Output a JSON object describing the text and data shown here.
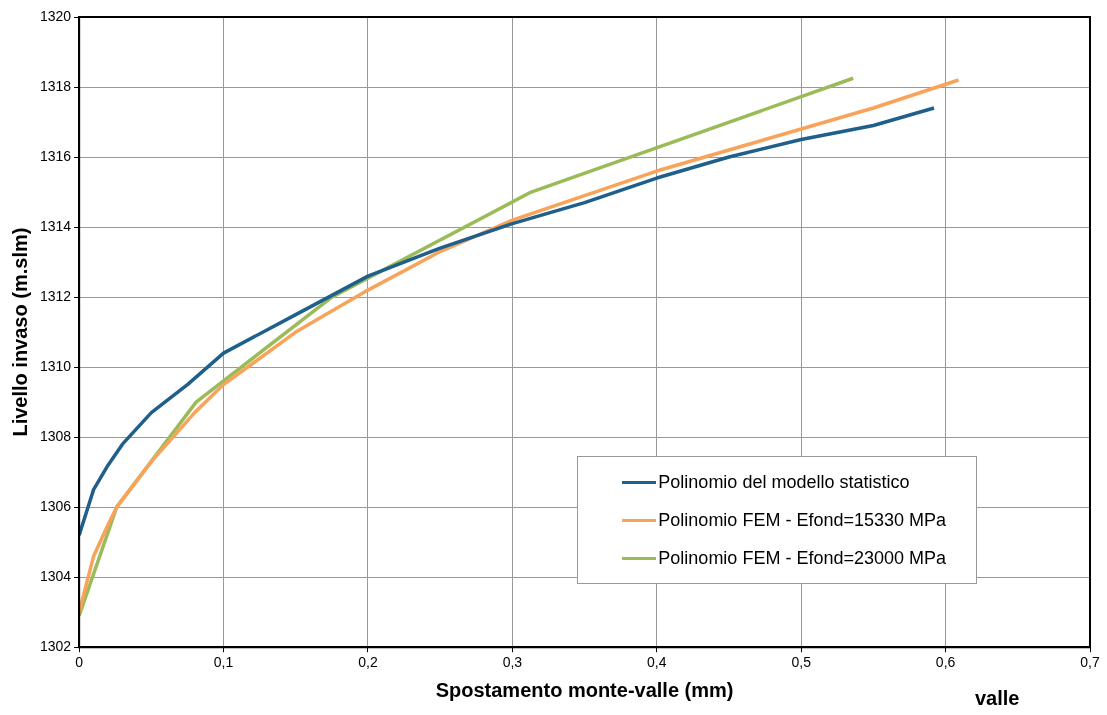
{
  "chart_data": {
    "type": "line",
    "xlabel": "Spostamento monte-valle (mm)",
    "ylabel": "Livello invaso (m.slm)",
    "annotations": [
      "valle"
    ],
    "xlim": [
      0,
      0.7
    ],
    "xticks": [
      {
        "value": 0,
        "label": "0"
      },
      {
        "value": 0.1,
        "label": "0,1"
      },
      {
        "value": 0.2,
        "label": "0,2"
      },
      {
        "value": 0.3,
        "label": "0,3"
      },
      {
        "value": 0.4,
        "label": "0,4"
      },
      {
        "value": 0.5,
        "label": "0,5"
      },
      {
        "value": 0.6,
        "label": "0,6"
      },
      {
        "value": 0.7,
        "label": "0,7"
      }
    ],
    "ylim": [
      1302,
      1320
    ],
    "yticks": [
      1302,
      1304,
      1306,
      1308,
      1310,
      1312,
      1314,
      1316,
      1318,
      1320
    ],
    "grid": true,
    "legend": "bottom right",
    "marker": "none",
    "line_style": "solid",
    "series": [
      {
        "name": "Polinomio del modello statistico",
        "color": "#1f5f8b",
        "x": [
          0,
          0.01,
          0.02,
          0.03,
          0.05,
          0.075,
          0.1,
          0.15,
          0.2,
          0.25,
          0.3,
          0.35,
          0.4,
          0.45,
          0.5,
          0.55,
          0.592
        ],
        "values": [
          1305.2,
          1306.5,
          1307.2,
          1307.8,
          1308.7,
          1309.5,
          1310.4,
          1311.5,
          1312.6,
          1313.4,
          1314.1,
          1314.7,
          1315.4,
          1316,
          1316.5,
          1316.9,
          1317.4
        ]
      },
      {
        "name": "Polinomio FEM - Efond=15330 MPa",
        "color": "#f9a35a",
        "x": [
          0,
          0.01,
          0.02,
          0.026,
          0.05,
          0.08,
          0.1,
          0.15,
          0.2,
          0.25,
          0.3,
          0.35,
          0.4,
          0.45,
          0.5,
          0.55,
          0.609
        ],
        "values": [
          1303,
          1304.6,
          1305.5,
          1306,
          1307.3,
          1308.7,
          1309.5,
          1311,
          1312.2,
          1313.3,
          1314.2,
          1314.9,
          1315.6,
          1316.2,
          1316.8,
          1317.4,
          1318.2
        ]
      },
      {
        "name": "Polinomio FEM - Efond=23000 MPa",
        "color": "#9bbb59",
        "x": [
          0,
          0.026,
          0.081,
          0.175,
          0.313,
          0.536
        ],
        "values": [
          1302.9,
          1306,
          1309,
          1312,
          1315,
          1318.25
        ]
      }
    ]
  }
}
